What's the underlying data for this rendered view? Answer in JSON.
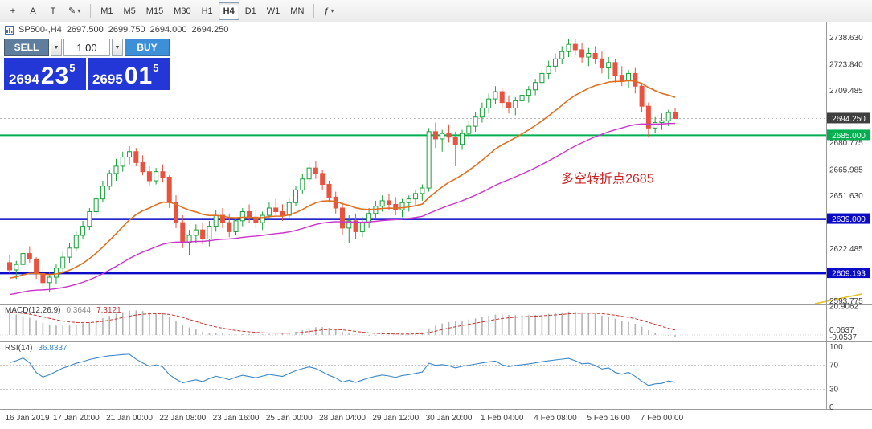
{
  "toolbar": {
    "icons": {
      "crosshair": "+",
      "text_a": "A",
      "text_t": "T",
      "draw": "✎",
      "dropdown": "▾",
      "indicators": "ƒ"
    },
    "timeframes": [
      "M1",
      "M5",
      "M15",
      "M30",
      "H1",
      "H4",
      "D1",
      "W1",
      "MN"
    ],
    "active_timeframe": "H4"
  },
  "trade_panel": {
    "sell_label": "SELL",
    "buy_label": "BUY",
    "volume": "1.00",
    "spinner_glyph": "▼",
    "sell_price": {
      "base": "2694",
      "big": "23",
      "sup": "5"
    },
    "buy_price": {
      "base": "2695",
      "big": "01",
      "sup": "5"
    }
  },
  "chart_header": {
    "symbol": "SP500-,H4",
    "open": "2697.500",
    "high": "2699.750",
    "low": "2694.000",
    "close": "2694.250"
  },
  "annotation": {
    "text": "多空转折点2685",
    "color": "#cc2222"
  },
  "bid_line": {
    "value": 2694.25,
    "color": "#b8b8b8"
  },
  "hlines": [
    {
      "value": 2685.0,
      "color": "#00b050",
      "width": 2
    },
    {
      "value": 2639.0,
      "color": "#0a0ac8",
      "width": 2.5
    },
    {
      "value": 2609.193,
      "color": "#0a0ac8",
      "width": 2.5
    }
  ],
  "price_axis": {
    "ticks": [
      {
        "label": "2738.630",
        "value": 2738.63
      },
      {
        "label": "2723.840",
        "value": 2723.84
      },
      {
        "label": "2709.485",
        "value": 2709.485
      },
      {
        "label": "2680.775",
        "value": 2680.775
      },
      {
        "label": "2665.985",
        "value": 2665.985
      },
      {
        "label": "2651.630",
        "value": 2651.63
      },
      {
        "label": "2622.485",
        "value": 2622.485
      },
      {
        "label": "2593.775",
        "value": 2593.775
      }
    ],
    "badges": [
      {
        "label": "2694.250",
        "value": 2694.25,
        "bg": "#3f3f3f"
      },
      {
        "label": "2685.000",
        "value": 2685.0,
        "bg": "#00b050"
      },
      {
        "label": "2639.000",
        "value": 2639.0,
        "bg": "#0a0ac8"
      },
      {
        "label": "2609.193",
        "value": 2609.193,
        "bg": "#0a0ac8"
      }
    ]
  },
  "macd_panel": {
    "title": "MACD(12,26,9)",
    "value_main": "0.3644",
    "value_signal": "7.3121",
    "scale_labels": [
      {
        "label": "20.9062",
        "value": 20.9062,
        "dy": 0
      },
      {
        "label": "0.0637",
        "value": 0,
        "dy": -6
      },
      {
        "label": "-0.0537",
        "value": 0,
        "dy": 3
      }
    ]
  },
  "rsi_panel": {
    "title": "RSI(14)",
    "value": "36.8337",
    "levels": [
      {
        "label": "100",
        "value": 100
      },
      {
        "label": "70",
        "value": 70
      },
      {
        "label": "30",
        "value": 30
      },
      {
        "label": "0",
        "value": 0
      }
    ]
  },
  "time_axis": {
    "labels": [
      "16 Jan 2019",
      "17 Jan 20:00",
      "21 Jan 00:00",
      "22 Jan 08:00",
      "23 Jan 16:00",
      "25 Jan 00:00",
      "28 Jan 04:00",
      "29 Jan 12:00",
      "30 Jan 20:00",
      "1 Feb 04:00",
      "4 Feb 08:00",
      "5 Feb 16:00",
      "7 Feb 00:00"
    ],
    "indices": [
      2,
      10,
      18,
      26,
      34,
      42,
      50,
      58,
      66,
      74,
      82,
      90,
      98
    ]
  },
  "chart_data": {
    "type": "candlestick",
    "symbol": "SP500-",
    "timeframe": "H4",
    "last_ohlc": {
      "open": 2697.5,
      "high": 2699.75,
      "low": 2694.0,
      "close": 2694.25
    },
    "y_range": [
      2592,
      2747
    ],
    "bull_color": "#18a038",
    "bear_color": "#e8523f",
    "candles": [
      [
        2615,
        2619,
        2609,
        2611
      ],
      [
        2611,
        2616,
        2606,
        2614
      ],
      [
        2614,
        2622,
        2612,
        2620
      ],
      [
        2620,
        2624,
        2615,
        2617
      ],
      [
        2617,
        2618,
        2606,
        2609
      ],
      [
        2609,
        2612,
        2601,
        2604
      ],
      [
        2604,
        2610,
        2599,
        2607
      ],
      [
        2607,
        2614,
        2603,
        2612
      ],
      [
        2612,
        2621,
        2609,
        2618
      ],
      [
        2618,
        2626,
        2615,
        2623
      ],
      [
        2623,
        2632,
        2621,
        2630
      ],
      [
        2630,
        2638,
        2628,
        2635
      ],
      [
        2635,
        2645,
        2633,
        2643
      ],
      [
        2643,
        2652,
        2641,
        2650
      ],
      [
        2650,
        2660,
        2648,
        2657
      ],
      [
        2657,
        2666,
        2655,
        2664
      ],
      [
        2664,
        2672,
        2660,
        2668
      ],
      [
        2668,
        2676,
        2665,
        2673
      ],
      [
        2673,
        2679,
        2669,
        2676
      ],
      [
        2676,
        2678,
        2668,
        2670
      ],
      [
        2670,
        2674,
        2663,
        2665
      ],
      [
        2665,
        2668,
        2657,
        2660
      ],
      [
        2660,
        2667,
        2658,
        2665
      ],
      [
        2665,
        2669,
        2659,
        2662
      ],
      [
        2662,
        2663,
        2645,
        2648
      ],
      [
        2648,
        2652,
        2634,
        2637
      ],
      [
        2637,
        2641,
        2623,
        2626
      ],
      [
        2626,
        2633,
        2619,
        2630
      ],
      [
        2630,
        2636,
        2626,
        2633
      ],
      [
        2633,
        2637,
        2625,
        2628
      ],
      [
        2628,
        2638,
        2624,
        2635
      ],
      [
        2635,
        2644,
        2632,
        2641
      ],
      [
        2641,
        2645,
        2634,
        2637
      ],
      [
        2637,
        2642,
        2629,
        2632
      ],
      [
        2632,
        2640,
        2630,
        2638
      ],
      [
        2638,
        2645,
        2635,
        2643
      ],
      [
        2643,
        2647,
        2637,
        2640
      ],
      [
        2640,
        2644,
        2634,
        2637
      ],
      [
        2637,
        2643,
        2633,
        2641
      ],
      [
        2641,
        2648,
        2639,
        2645
      ],
      [
        2645,
        2650,
        2641,
        2643
      ],
      [
        2643,
        2647,
        2638,
        2641
      ],
      [
        2641,
        2650,
        2639,
        2648
      ],
      [
        2648,
        2657,
        2646,
        2655
      ],
      [
        2655,
        2664,
        2653,
        2661
      ],
      [
        2661,
        2670,
        2659,
        2667
      ],
      [
        2667,
        2671,
        2661,
        2664
      ],
      [
        2664,
        2666,
        2655,
        2658
      ],
      [
        2658,
        2660,
        2648,
        2651
      ],
      [
        2651,
        2654,
        2642,
        2645
      ],
      [
        2645,
        2648,
        2630,
        2634
      ],
      [
        2634,
        2641,
        2626,
        2638
      ],
      [
        2638,
        2642,
        2628,
        2632
      ],
      [
        2632,
        2640,
        2629,
        2637
      ],
      [
        2637,
        2645,
        2634,
        2642
      ],
      [
        2642,
        2649,
        2639,
        2646
      ],
      [
        2646,
        2652,
        2643,
        2649
      ],
      [
        2649,
        2653,
        2644,
        2647
      ],
      [
        2647,
        2651,
        2641,
        2644
      ],
      [
        2644,
        2650,
        2640,
        2648
      ],
      [
        2648,
        2652,
        2643,
        2650
      ],
      [
        2650,
        2655,
        2646,
        2653
      ],
      [
        2653,
        2658,
        2649,
        2656
      ],
      [
        2656,
        2689,
        2654,
        2687
      ],
      [
        2687,
        2692,
        2678,
        2683
      ],
      [
        2683,
        2688,
        2676,
        2686
      ],
      [
        2686,
        2691,
        2681,
        2684
      ],
      [
        2684,
        2687,
        2668,
        2680
      ],
      [
        2680,
        2688,
        2677,
        2686
      ],
      [
        2686,
        2693,
        2683,
        2690
      ],
      [
        2690,
        2698,
        2687,
        2695
      ],
      [
        2695,
        2703,
        2692,
        2700
      ],
      [
        2700,
        2708,
        2697,
        2705
      ],
      [
        2705,
        2712,
        2702,
        2709
      ],
      [
        2709,
        2711,
        2700,
        2703
      ],
      [
        2703,
        2707,
        2697,
        2700
      ],
      [
        2700,
        2706,
        2696,
        2704
      ],
      [
        2704,
        2710,
        2701,
        2707
      ],
      [
        2707,
        2712,
        2703,
        2710
      ],
      [
        2710,
        2716,
        2707,
        2714
      ],
      [
        2714,
        2721,
        2712,
        2719
      ],
      [
        2719,
        2726,
        2716,
        2723
      ],
      [
        2723,
        2730,
        2720,
        2727
      ],
      [
        2727,
        2734,
        2724,
        2731
      ],
      [
        2731,
        2738,
        2728,
        2735
      ],
      [
        2735,
        2738,
        2729,
        2732
      ],
      [
        2732,
        2736,
        2725,
        2728
      ],
      [
        2728,
        2733,
        2723,
        2730
      ],
      [
        2730,
        2734,
        2724,
        2727
      ],
      [
        2727,
        2731,
        2719,
        2722
      ],
      [
        2722,
        2728,
        2716,
        2725
      ],
      [
        2725,
        2727,
        2714,
        2718
      ],
      [
        2718,
        2723,
        2712,
        2715
      ],
      [
        2715,
        2721,
        2711,
        2719
      ],
      [
        2719,
        2722,
        2708,
        2712
      ],
      [
        2712,
        2714,
        2698,
        2701
      ],
      [
        2701,
        2703,
        2684,
        2689
      ],
      [
        2689,
        2695,
        2686,
        2692
      ],
      [
        2692,
        2697,
        2688,
        2693
      ],
      [
        2693,
        2699,
        2690,
        2697.5
      ],
      [
        2697.5,
        2699.75,
        2694,
        2694.25
      ]
    ],
    "overlays": {
      "ma_fast": {
        "type": "ema",
        "period": 21,
        "color": "#e0701f",
        "seed_offset": -5
      },
      "ma_slow": {
        "type": "ema",
        "period": 55,
        "color": "#cc33cc",
        "seed_offset": -14
      }
    },
    "indicators": {
      "macd": {
        "fast": 12,
        "slow": 26,
        "signal": 9,
        "histogram_color": "#b4b4b4",
        "signal_color": "#cc3333",
        "seed_fast_offset": 11,
        "seed_slow_offset": -8
      },
      "rsi": {
        "period": 14,
        "color": "#3a87c8",
        "seed_gain": 1.3,
        "seed_loss": 0.45
      }
    }
  }
}
